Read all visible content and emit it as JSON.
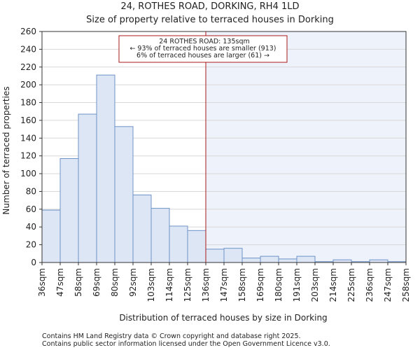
{
  "chart_data": {
    "type": "bar",
    "title": "24, ROTHES ROAD, DORKING, RH4 1LD",
    "subtitle": "Size of property relative to terraced houses in Dorking",
    "xlabel": "Distribution of terraced houses by size in Dorking",
    "ylabel": "Number of terraced properties",
    "ylim": [
      0,
      260
    ],
    "yticks": [
      0,
      20,
      40,
      60,
      80,
      100,
      120,
      140,
      160,
      180,
      200,
      220,
      240,
      260
    ],
    "x_tick_labels": [
      "36sqm",
      "47sqm",
      "58sqm",
      "69sqm",
      "80sqm",
      "92sqm",
      "103sqm",
      "114sqm",
      "125sqm",
      "136sqm",
      "147sqm",
      "158sqm",
      "169sqm",
      "180sqm",
      "191sqm",
      "203sqm",
      "214sqm",
      "225sqm",
      "236sqm",
      "247sqm",
      "258sqm"
    ],
    "values": [
      59,
      117,
      167,
      211,
      153,
      76,
      61,
      41,
      36,
      15,
      16,
      5,
      7,
      4,
      7,
      1,
      3,
      1,
      3,
      1
    ],
    "marker_index": 9,
    "annotation": {
      "line1": "24 ROTHES ROAD: 135sqm",
      "line2": "← 93% of terraced houses are smaller (913)",
      "line3": "6% of terraced houses are larger (61) →"
    },
    "colors": {
      "bar_fill": "#dce6f4",
      "bar_stroke": "#6f93c8",
      "highlight_bg": "#eef2fb",
      "marker": "#aa1a1a",
      "grid": "#d8d8d8"
    }
  },
  "footer": {
    "line1": "Contains HM Land Registry data © Crown copyright and database right 2025.",
    "line2": "Contains public sector information licensed under the Open Government Licence v3.0."
  }
}
